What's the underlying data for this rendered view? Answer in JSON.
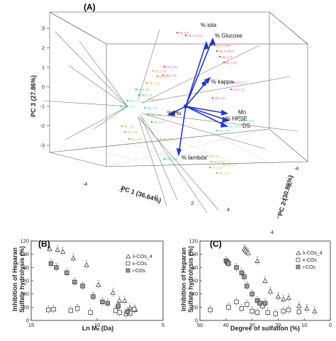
{
  "chart_data": [
    {
      "panel": "(A)",
      "type": "scatter",
      "subtype": "3d-pca-biplot",
      "axes": {
        "x": {
          "label": "PC 1 (36.64%)",
          "ticks": [
            "-4",
            "-2",
            "0",
            "2",
            "4"
          ]
        },
        "y": {
          "label": "PC 2 (30.86%)",
          "ticks": [
            "-4",
            "-2",
            "0",
            "2",
            "4"
          ]
        },
        "z": {
          "label": "PC 3 (27.86%)",
          "ticks": [
            "3",
            "2",
            "1",
            "0",
            "-1",
            "-2",
            "-3"
          ]
        }
      },
      "loadings": [
        {
          "label": "% iota"
        },
        {
          "label": "% Glucose"
        },
        {
          "label": "% kappa"
        },
        {
          "label": "% Hu"
        },
        {
          "label": "Mn"
        },
        {
          "label": "% HPSE"
        },
        {
          "label": "DS"
        },
        {
          "label": "% lambda"
        }
      ],
      "groups": [
        {
          "name": "red",
          "color": "#e0221f",
          "labels": [
            "Car_4_5",
            "Car_4_172.5",
            "Car_4_136.4",
            "Car_4_378.5",
            "Car_i_1.3",
            "Car_i_3.6"
          ]
        },
        {
          "name": "orange",
          "color": "#e08a1e",
          "labels": [
            "Car_i_9.9",
            "Car_i_6.7",
            "Car_i_0.8",
            "Car_i_6.8"
          ]
        },
        {
          "name": "magenta",
          "color": "#d81fc0",
          "labels": [
            "Car_k_3.3",
            "Car_k_4.8",
            "Car_k_2.7",
            "Car_k_1.6",
            "Car_k_4.1"
          ]
        },
        {
          "name": "green",
          "color": "#1fae35",
          "labels": [
            "Car_k_2.5",
            "Car_k_2.6",
            "Car_l_1.5",
            "Car_l_2.4",
            "Car_l_6.0"
          ]
        },
        {
          "name": "cyan",
          "color": "#14c8c8",
          "labels": [
            "Car_k_3.4",
            "Car_l_5.1",
            "Car_l_3.6",
            "Car_l_13.0",
            "Car_l_9.6",
            "Car_l_10.8"
          ]
        },
        {
          "name": "olive",
          "color": "#a8a418",
          "labels": [
            "Car_l_6.3",
            "Car_l_4.9",
            "Car_l_8.0",
            "Car_l_5.6",
            "Car_l_4.1",
            "Car_l_3.8",
            "Car_l_1.2",
            "Car_l_2.0",
            "Car_l_5.7"
          ]
        }
      ]
    },
    {
      "panel": "(B)",
      "type": "scatter",
      "xlabel": "Ln Mₙ (Da)",
      "ylabel": "Inhibition of Heparan Sulfate hydrolysis (%)",
      "xlim": [
        15,
        5
      ],
      "ylim": [
        0,
        120
      ],
      "xticks": [
        15,
        10,
        5
      ],
      "yticks": [
        0,
        20,
        40,
        60,
        80,
        100,
        120
      ],
      "series": [
        {
          "name": "λ-COs_4",
          "marker": "triangle",
          "x": [
            13.6,
            13.0,
            12.6,
            11.8,
            10.8,
            9.9,
            8.8,
            8.3,
            7.9,
            7.5,
            7.1
          ],
          "y": [
            108,
            107,
            104,
            94,
            84,
            54,
            42,
            30,
            30,
            19,
            16
          ]
        },
        {
          "name": "κ-COs",
          "marker": "square-open",
          "x": [
            13.7,
            13.3,
            12.0,
            11.5,
            10.5,
            8.6,
            8.3,
            7.8,
            7.5,
            7.2
          ],
          "y": [
            16,
            17,
            15,
            18,
            12,
            15,
            12,
            10,
            11,
            17
          ]
        },
        {
          "name": "ι-COs",
          "marker": "square-gray",
          "x": [
            13.5,
            13.1,
            12.3,
            11.7,
            11.1,
            10.3,
            9.6,
            9.2,
            8.4,
            7.7
          ],
          "y": [
            86,
            80,
            72,
            58,
            52,
            36,
            28,
            26,
            22,
            13
          ]
        }
      ],
      "error_bars": true
    },
    {
      "panel": "(C)",
      "type": "scatter",
      "xlabel": "Degree of sulfation (%)",
      "ylabel": "Inhibition of Heparan Sulfate hydrolysis (%)",
      "xlim": [
        50,
        0
      ],
      "ylim": [
        0,
        120
      ],
      "xticks": [
        50,
        40,
        30,
        20,
        10,
        0
      ],
      "yticks": [
        0,
        20,
        40,
        60,
        80,
        100,
        120
      ],
      "series": [
        {
          "name": "λ-COs_4",
          "marker": "triangle",
          "x": [
            33.0,
            32.5,
            32.0,
            31.5,
            28,
            25,
            23,
            20,
            18,
            16,
            12,
            9,
            6
          ],
          "y": [
            108,
            106,
            104,
            102,
            90,
            60,
            44,
            36,
            32,
            34,
            22,
            18,
            14
          ]
        },
        {
          "name": "κ-COs",
          "marker": "square-open",
          "x": [
            46,
            39,
            36,
            34,
            32,
            30,
            28,
            26,
            24,
            21,
            18,
            16,
            12
          ],
          "y": [
            16,
            20,
            28,
            18,
            24,
            14,
            12,
            22,
            12,
            10,
            14,
            16,
            13
          ]
        },
        {
          "name": "ι-COs",
          "marker": "square-gray",
          "x": [
            40,
            39.5,
            39,
            36,
            34,
            33,
            32,
            30,
            28,
            27,
            25
          ],
          "y": [
            90,
            88,
            86,
            80,
            72,
            66,
            52,
            40,
            30,
            26,
            26
          ]
        }
      ],
      "error_bars": true
    }
  ]
}
